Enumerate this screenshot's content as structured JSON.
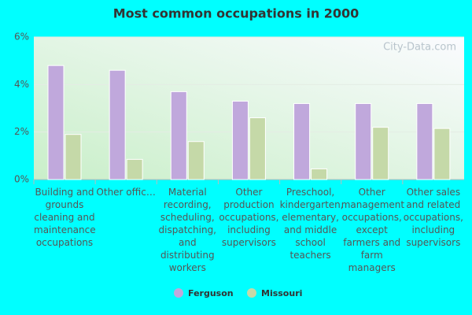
{
  "chart_data": {
    "type": "bar",
    "title": "Most common occupations in 2000",
    "categories": [
      "Building and grounds cleaning and maintenance occupations",
      "Other offic…",
      "Material recording, scheduling, dispatching, and distributing workers",
      "Other production occupations, including supervisors",
      "Preschool, kindergarten, elementary, and middle school teachers",
      "Other management occupations, except farmers and farm managers",
      "Other sales and related occupations, including supervisors"
    ],
    "series": [
      {
        "name": "Ferguson",
        "color": "#c0a8dc",
        "values": [
          4.8,
          4.6,
          3.7,
          3.3,
          3.2,
          3.2,
          3.2
        ]
      },
      {
        "name": "Missouri",
        "color": "#c5d9a8",
        "values": [
          1.9,
          0.85,
          1.6,
          2.6,
          0.45,
          2.2,
          2.15
        ]
      }
    ],
    "ylim": [
      0,
      6
    ],
    "yticks": [
      {
        "value": 0,
        "label": "0%"
      },
      {
        "value": 2,
        "label": "2%"
      },
      {
        "value": 4,
        "label": "4%"
      },
      {
        "value": 6,
        "label": "6%"
      }
    ],
    "grid": true,
    "legend": "bottom",
    "watermark": "City-Data.com"
  }
}
